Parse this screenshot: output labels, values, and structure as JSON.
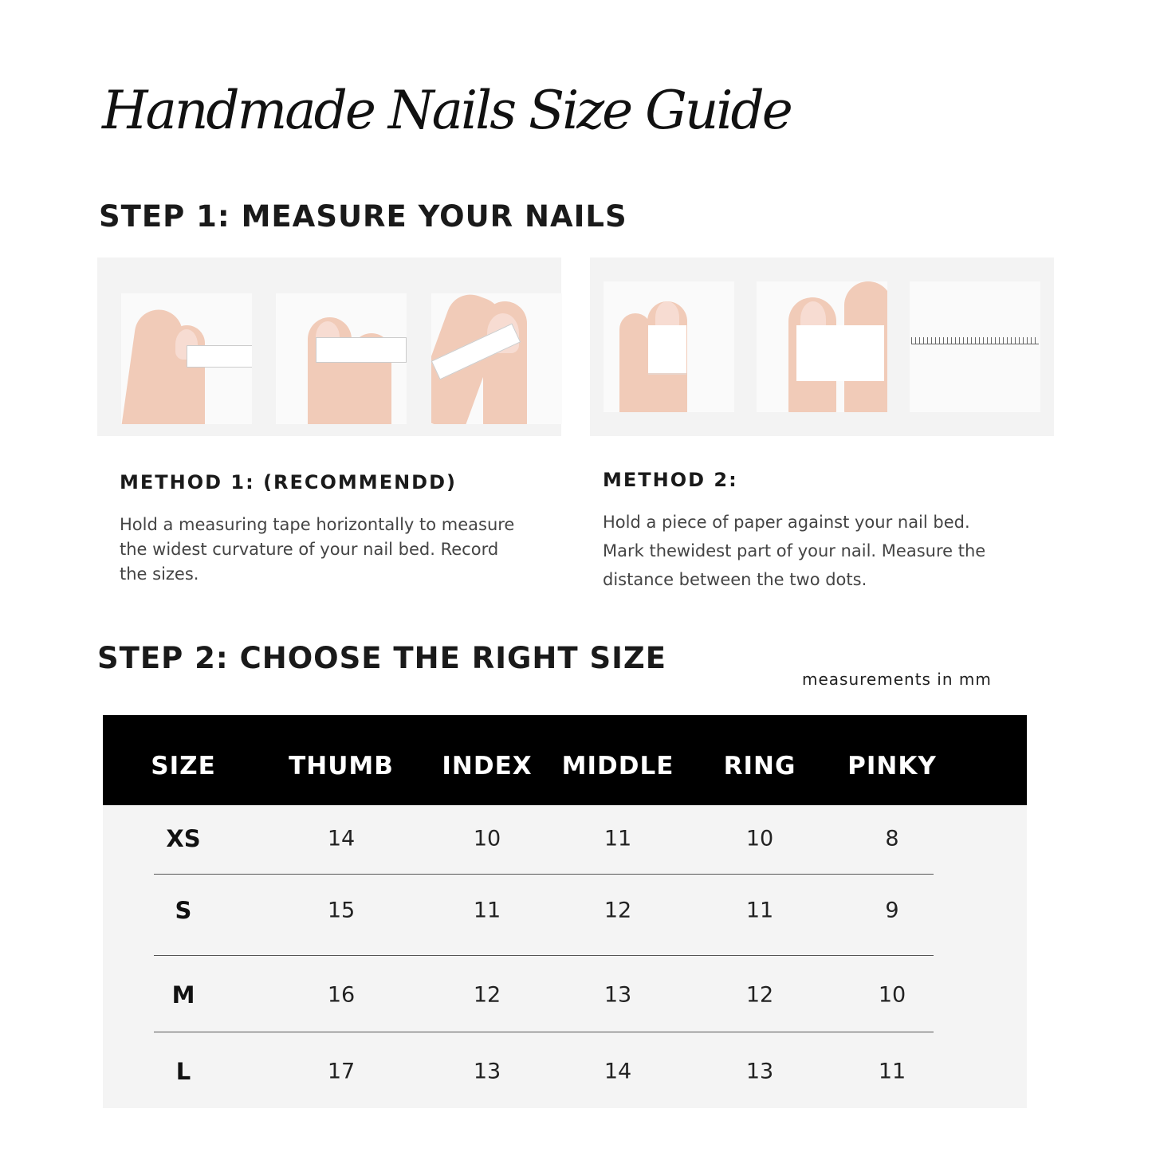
{
  "title": "Handmade Nails Size Guide",
  "step1": {
    "heading": "STEP 1: MEASURE YOUR NAILS",
    "method1": {
      "heading": "METHOD 1: (RECOMMENDD)",
      "text": "Hold a measuring tape horizontally to measure the widest curvature of your nail bed. Record the sizes."
    },
    "method2": {
      "heading": "METHOD 2:",
      "text": "Hold a piece of paper against your nail bed. Mark thewidest part of your nail. Measure the distance between the two dots."
    }
  },
  "step2": {
    "heading": "STEP 2: CHOOSE THE RIGHT SIZE",
    "units_note": "measurements in mm",
    "table": {
      "headers": [
        "SIZE",
        "THUMB",
        "INDEX",
        "MIDDLE",
        "RING",
        "PINKY"
      ],
      "rows": [
        [
          "XS",
          "14",
          "10",
          "11",
          "10",
          "8"
        ],
        [
          "S",
          "15",
          "11",
          "12",
          "11",
          "9"
        ],
        [
          "M",
          "16",
          "12",
          "13",
          "12",
          "10"
        ],
        [
          "L",
          "17",
          "13",
          "14",
          "13",
          "11"
        ]
      ]
    }
  }
}
